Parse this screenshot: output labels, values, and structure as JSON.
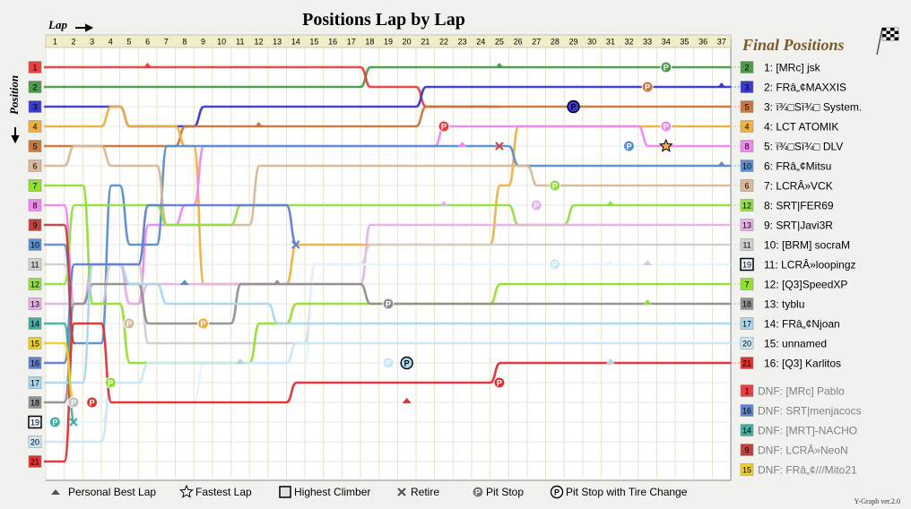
{
  "chart_data": {
    "type": "line",
    "title": "Positions Lap by Lap",
    "xlabel": "Lap",
    "ylabel": "Position",
    "laps": 37,
    "positions": 21,
    "final_header": "Final Positions",
    "version": "Y-Graph ver.2.0",
    "final": [
      {
        "text": "1: [MRc] jsk",
        "box": "2",
        "color": "#4a9c4a"
      },
      {
        "text": "2: FRâ„¢MAXXIS",
        "box": "3",
        "color": "#3a3ad0"
      },
      {
        "text": "3: ï¾□Sï¾□ System.",
        "box": "5",
        "color": "#c8783c"
      },
      {
        "text": "4: LCT ATOMIK",
        "box": "4",
        "color": "#f0b040"
      },
      {
        "text": "5: ï¾□Sï¾□ DLV",
        "box": "8",
        "color": "#ee88ee"
      },
      {
        "text": "6: FRâ„¢Mitsu",
        "box": "10",
        "color": "#5a8ed0"
      },
      {
        "text": "7: LCRÂ»VCK",
        "box": "6",
        "color": "#d8b898"
      },
      {
        "text": "8: SRT|FER69",
        "box": "12",
        "color": "#90e040"
      },
      {
        "text": "9: SRT|Javi3R",
        "box": "13",
        "color": "#e8b0e8"
      },
      {
        "text": "10: [BRM] socraM",
        "box": "11",
        "color": "#d0d0d0"
      },
      {
        "text": "11: LCRÂ»loopingz",
        "box": "19",
        "color": "#e8f4fc"
      },
      {
        "text": "12: [Q3]SpeedXP",
        "box": "7",
        "color": "#90e030"
      },
      {
        "text": "13: tyblu",
        "box": "18",
        "color": "#909090"
      },
      {
        "text": "14: FRâ„¢Njoan",
        "box": "17",
        "color": "#a8d8f0"
      },
      {
        "text": "15: unnamed",
        "box": "20",
        "color": "#c8e8f8"
      },
      {
        "text": "16: [Q3] Karlitos",
        "box": "21",
        "color": "#e03030"
      }
    ],
    "dnf": [
      {
        "text": "DNF: [MRc] Pablo",
        "box": "1",
        "color": "#e84040"
      },
      {
        "text": "DNF: SRT|menjacocs",
        "box": "16",
        "color": "#6080d0"
      },
      {
        "text": "DNF: [MRT]-NACHO",
        "box": "14",
        "color": "#40b0a0"
      },
      {
        "text": "DNF: LCRÂ»NeoN",
        "box": "9",
        "color": "#c04040"
      },
      {
        "text": "DNF: FRâ„¢///Mito21",
        "box": "15",
        "color": "#f0d020"
      }
    ],
    "legend": [
      "Personal Best Lap",
      "Fastest Lap",
      "Highest Climber",
      "Retire",
      "Pit Stop",
      "Pit Stop with Tire Change"
    ],
    "start_colors": [
      "#e84040",
      "#4a9c4a",
      "#3a3ad0",
      "#f0b040",
      "#c8783c",
      "#d8b898",
      "#90e030",
      "#ee88ee",
      "#c04040",
      "#5a8ed0",
      "#d0d0d0",
      "#90e040",
      "#e8b0e8",
      "#40b0a0",
      "#f0d020",
      "#6080d0",
      "#a8d8f0",
      "#909090",
      "#e8f4fc",
      "#c8e8f8",
      "#e03030"
    ],
    "series": [
      {
        "name": "[MRc] jsk",
        "color": "#4a9c4a",
        "start": 2,
        "changes": [
          [
            18,
            1
          ]
        ],
        "end_lap": 37
      },
      {
        "name": "[MRc] Pablo",
        "color": "#e84040",
        "start": 1,
        "changes": [
          [
            18,
            2
          ],
          [
            21,
            3
          ]
        ],
        "end_lap": 25
      },
      {
        "name": "FRâ„¢MAXXIS",
        "color": "#3a3ad0",
        "start": 3,
        "changes": [
          [
            5,
            4
          ],
          [
            9,
            3
          ],
          [
            21,
            2
          ]
        ],
        "end_lap": 37
      },
      {
        "name": "ï¾□Sï¾□ System.",
        "color": "#c8783c",
        "start": 5,
        "changes": [
          [
            8,
            4
          ],
          [
            21,
            3
          ]
        ],
        "end_lap": 37
      },
      {
        "name": "LCT ATOMIK",
        "color": "#f0b040",
        "start": 4,
        "changes": [
          [
            4,
            3
          ],
          [
            5,
            4
          ],
          [
            8,
            5
          ],
          [
            9,
            12
          ],
          [
            14,
            10
          ],
          [
            25,
            7
          ],
          [
            26,
            4
          ]
        ],
        "end_lap": 37
      },
      {
        "name": "ï¾□Sï¾□ DLV",
        "color": "#ee88ee",
        "start": 8,
        "changes": [
          [
            2,
            13
          ],
          [
            3,
            11
          ],
          [
            5,
            13
          ],
          [
            6,
            9
          ],
          [
            8,
            8
          ],
          [
            9,
            5
          ],
          [
            22,
            4
          ],
          [
            33,
            5
          ]
        ],
        "end_lap": 37
      },
      {
        "name": "FRâ„¢Mitsu",
        "color": "#5a8ed0",
        "start": 10,
        "changes": [
          [
            2,
            15
          ],
          [
            4,
            7
          ],
          [
            5,
            10
          ],
          [
            7,
            5
          ],
          [
            26,
            6
          ]
        ],
        "end_lap": 37
      },
      {
        "name": "LCRÂ»VCK",
        "color": "#d8b898",
        "start": 6,
        "changes": [
          [
            2,
            5
          ],
          [
            4,
            6
          ],
          [
            7,
            9
          ],
          [
            12,
            6
          ],
          [
            27,
            7
          ]
        ],
        "end_lap": 37
      },
      {
        "name": "SRT|FER69",
        "color": "#90e040",
        "start": 12,
        "changes": [
          [
            2,
            8
          ],
          [
            7,
            9
          ],
          [
            11,
            8
          ],
          [
            26,
            9
          ],
          [
            29,
            8
          ]
        ],
        "end_lap": 37
      },
      {
        "name": "SRT|Javi3R",
        "color": "#e8b0e8",
        "start": 13,
        "changes": [
          [
            3,
            11
          ],
          [
            5,
            13
          ],
          [
            6,
            12
          ],
          [
            18,
            9
          ]
        ],
        "end_lap": 37
      },
      {
        "name": "[BRM] socraM",
        "color": "#d0d0d0",
        "start": 11,
        "changes": [
          [
            2,
            13
          ],
          [
            4,
            11
          ],
          [
            6,
            15
          ],
          [
            15,
            11
          ],
          [
            18,
            10
          ]
        ],
        "end_lap": 37
      },
      {
        "name": "LCRÂ»loopingz",
        "color": "#e8f4fc",
        "start": 19,
        "changes": [
          [
            4,
            18
          ],
          [
            9,
            16
          ],
          [
            15,
            11
          ]
        ],
        "end_lap": 37
      },
      {
        "name": "[Q3]SpeedXP",
        "color": "#90e030",
        "start": 7,
        "changes": [
          [
            3,
            13
          ],
          [
            5,
            16
          ],
          [
            12,
            14
          ],
          [
            14,
            13
          ],
          [
            25,
            12
          ]
        ],
        "end_lap": 37
      },
      {
        "name": "tyblu",
        "color": "#909090",
        "start": 18,
        "changes": [
          [
            2,
            13
          ],
          [
            3,
            12
          ],
          [
            6,
            14
          ],
          [
            11,
            12
          ],
          [
            18,
            13
          ]
        ],
        "end_lap": 37
      },
      {
        "name": "FRâ„¢Njoan",
        "color": "#a8d8f0",
        "start": 17,
        "changes": [
          [
            3,
            11
          ],
          [
            5,
            12
          ],
          [
            7,
            13
          ],
          [
            13,
            14
          ]
        ],
        "end_lap": 37
      },
      {
        "name": "unnamed",
        "color": "#c8e8f8",
        "start": 20,
        "changes": [
          [
            4,
            17
          ],
          [
            6,
            16
          ],
          [
            14,
            15
          ]
        ],
        "end_lap": 37
      },
      {
        "name": "[Q3] Karlitos",
        "color": "#e03030",
        "start": 21,
        "changes": [
          [
            2,
            14
          ],
          [
            4,
            18
          ],
          [
            14,
            17
          ],
          [
            25,
            16
          ]
        ],
        "end_lap": 37
      },
      {
        "name": "SRT|menjacocs",
        "color": "#6080d0",
        "start": 16,
        "changes": [
          [
            2,
            11
          ],
          [
            6,
            8
          ],
          [
            14,
            10
          ]
        ],
        "end_lap": 14
      },
      {
        "name": "[MRT]-NACHO",
        "color": "#40b0a0",
        "start": 14,
        "changes": [
          [
            2,
            19
          ]
        ],
        "end_lap": 2
      },
      {
        "name": "LCRÂ»NeoN",
        "color": "#c04040",
        "start": 9,
        "changes": [
          [
            2,
            15
          ]
        ],
        "end_lap": 2
      },
      {
        "name": "FRâ„¢///Mito21",
        "color": "#f0d020",
        "start": 15,
        "changes": [
          [
            2,
            18
          ]
        ],
        "end_lap": 2
      }
    ],
    "markers": [
      {
        "type": "pit",
        "lap": 34,
        "pos": 1,
        "color": "#4a9c4a"
      },
      {
        "type": "pit",
        "lap": 33,
        "pos": 2,
        "color": "#c8783c"
      },
      {
        "type": "pit_tire",
        "lap": 29,
        "pos": 3,
        "color": "#3a3ad0"
      },
      {
        "type": "pit",
        "lap": 22,
        "pos": 4,
        "color": "#e84040"
      },
      {
        "type": "pit",
        "lap": 34,
        "pos": 4,
        "color": "#ee88ee"
      },
      {
        "type": "pit",
        "lap": 32,
        "pos": 5,
        "color": "#5a8ed0"
      },
      {
        "type": "fastest",
        "lap": 34,
        "pos": 5,
        "color": "#f0b040"
      },
      {
        "type": "retire",
        "lap": 25,
        "pos": 5,
        "color": "#e84040"
      },
      {
        "type": "pit",
        "lap": 28,
        "pos": 7,
        "color": "#90e040"
      },
      {
        "type": "pit",
        "lap": 27,
        "pos": 8,
        "color": "#e8b0e8"
      },
      {
        "type": "retire",
        "lap": 14,
        "pos": 10,
        "color": "#6080d0"
      },
      {
        "type": "pit",
        "lap": 28,
        "pos": 11,
        "color": "#c8e8f8"
      },
      {
        "type": "pit",
        "lap": 19,
        "pos": 13,
        "color": "#909090"
      },
      {
        "type": "pit",
        "lap": 5,
        "pos": 14,
        "color": "#d8b898"
      },
      {
        "type": "pit",
        "lap": 9,
        "pos": 14,
        "color": "#f0b040"
      },
      {
        "type": "pit",
        "lap": 19,
        "pos": 16,
        "color": "#c8e8f8"
      },
      {
        "type": "pit_tire",
        "lap": 20,
        "pos": 16,
        "color": "#a8d8f0"
      },
      {
        "type": "pit",
        "lap": 4,
        "pos": 17,
        "color": "#90e030"
      },
      {
        "type": "pit",
        "lap": 25,
        "pos": 17,
        "color": "#e03030"
      },
      {
        "type": "pit",
        "lap": 2,
        "pos": 18,
        "color": "#c0c0c0"
      },
      {
        "type": "pit",
        "lap": 3,
        "pos": 18,
        "color": "#e03030"
      },
      {
        "type": "pit",
        "lap": 1,
        "pos": 19,
        "color": "#40b0a0"
      },
      {
        "type": "retire",
        "lap": 2,
        "pos": 19,
        "color": "#40b0a0"
      },
      {
        "type": "best",
        "lap": 6,
        "pos": 1,
        "color": "#e84040"
      },
      {
        "type": "best",
        "lap": 25,
        "pos": 1,
        "color": "#4a9c4a"
      },
      {
        "type": "best",
        "lap": 37,
        "pos": 2,
        "color": "#3a3ad0"
      },
      {
        "type": "best",
        "lap": 12,
        "pos": 4,
        "color": "#c8783c"
      },
      {
        "type": "best",
        "lap": 23,
        "pos": 5,
        "color": "#ee88ee"
      },
      {
        "type": "best",
        "lap": 37,
        "pos": 6,
        "color": "#5a8ed0"
      },
      {
        "type": "best",
        "lap": 22,
        "pos": 8,
        "color": "#e8b0e8"
      },
      {
        "type": "best",
        "lap": 31,
        "pos": 8,
        "color": "#90e040"
      },
      {
        "type": "best",
        "lap": 31,
        "pos": 11,
        "color": "#e8f4fc"
      },
      {
        "type": "best",
        "lap": 33,
        "pos": 11,
        "color": "#d0d0d0"
      },
      {
        "type": "best",
        "lap": 8,
        "pos": 12,
        "color": "#5a8ed0"
      },
      {
        "type": "best",
        "lap": 13,
        "pos": 12,
        "color": "#909090"
      },
      {
        "type": "best",
        "lap": 33,
        "pos": 13,
        "color": "#90e030"
      },
      {
        "type": "best",
        "lap": 11,
        "pos": 16,
        "color": "#a8d8f0"
      },
      {
        "type": "best",
        "lap": 31,
        "pos": 16,
        "color": "#a8d8f0"
      },
      {
        "type": "best",
        "lap": 20,
        "pos": 18,
        "color": "#e03030"
      }
    ]
  }
}
